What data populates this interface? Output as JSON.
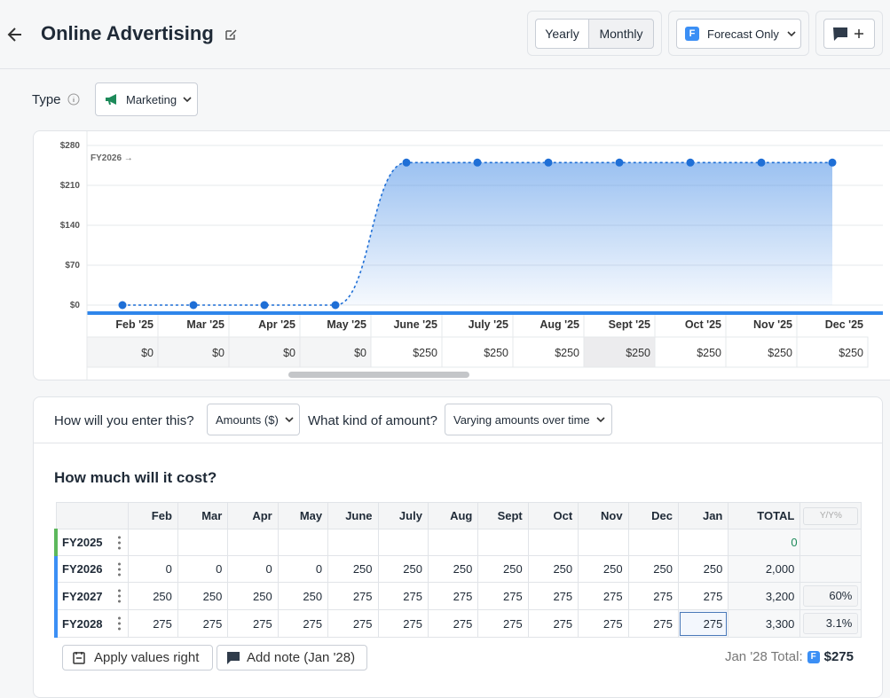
{
  "header": {
    "title": "Online Advertising",
    "view_toggle": [
      "Yearly",
      "Monthly"
    ],
    "filter_icon": "F",
    "filter": "Forecast Only"
  },
  "type_field": {
    "label": "Type",
    "value": "Marketing"
  },
  "chart_data": {
    "type": "area",
    "annotation": "FY2026 →",
    "categories": [
      "Feb '25",
      "Mar '25",
      "Apr '25",
      "May '25",
      "June '25",
      "July '25",
      "Aug '25",
      "Sept '25",
      "Oct '25",
      "Nov '25",
      "Dec '25"
    ],
    "values": [
      0,
      0,
      0,
      0,
      250,
      250,
      250,
      250,
      250,
      250,
      250
    ],
    "value_labels": [
      "$0",
      "$0",
      "$0",
      "$0",
      "$250",
      "$250",
      "$250",
      "$250",
      "$250",
      "$250",
      "$250"
    ],
    "color": "#1f6fd6",
    "ylim": [
      0,
      280
    ],
    "yticks": [
      {
        "value": 0,
        "label": "$0"
      },
      {
        "value": 70,
        "label": "$70"
      },
      {
        "value": 140,
        "label": "$140"
      },
      {
        "value": 210,
        "label": "$210"
      },
      {
        "value": 280,
        "label": "$280"
      }
    ],
    "grid": true
  },
  "entry": {
    "method_question": "How will you enter this?",
    "method": "Amounts ($)",
    "kind_question": "What kind of amount?",
    "kind": "Varying amounts over time"
  },
  "cost_table": {
    "title": "How much will it cost?",
    "columns": [
      "Feb",
      "Mar",
      "Apr",
      "May",
      "June",
      "July",
      "Aug",
      "Sept",
      "Oct",
      "Nov",
      "Dec",
      "Jan"
    ],
    "total_header": "TOTAL",
    "yoy_header": "Y/Y%",
    "rows": [
      {
        "label": "FY2025",
        "total": 0
      },
      {
        "label": "FY2026",
        "values": [
          0,
          0,
          0,
          0,
          250,
          250,
          250,
          250,
          250,
          250,
          250,
          250
        ],
        "total": "2,000"
      },
      {
        "label": "FY2027",
        "values": [
          250,
          250,
          250,
          250,
          275,
          275,
          275,
          275,
          275,
          275,
          275,
          275
        ],
        "total": "3,200",
        "yoy": "60%"
      },
      {
        "label": "FY2028",
        "values": [
          275,
          275,
          275,
          275,
          275,
          275,
          275,
          275,
          275,
          275,
          275,
          275
        ],
        "total": "3,300",
        "yoy": "3.1%"
      }
    ]
  },
  "footer": {
    "apply": "Apply values right",
    "note": "Add note (Jan '28)",
    "total_label": "Jan '28 Total:",
    "total_icon": "F",
    "total": "$275"
  }
}
